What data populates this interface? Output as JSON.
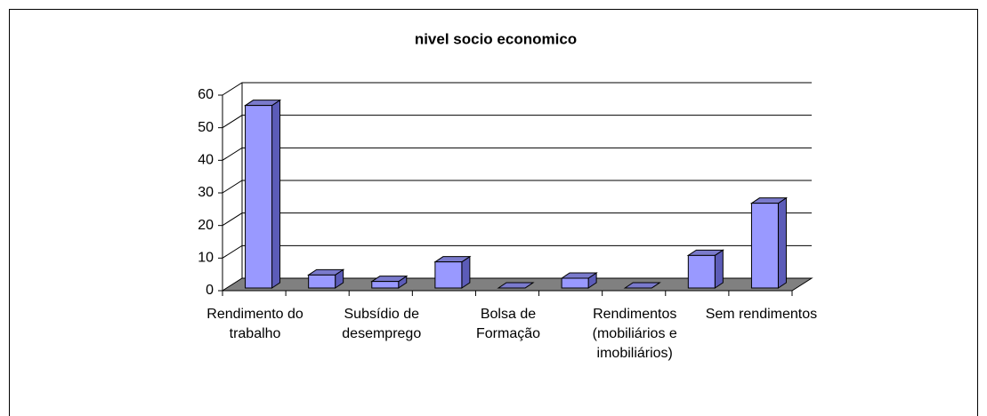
{
  "chart_data": {
    "type": "bar3d",
    "title": "nivel socio economico",
    "categories": [
      "Rendimento do trabalho",
      null,
      "Subsídio de desemprego",
      null,
      "Bolsa de Formação",
      null,
      "Rendimentos (mobiliários e imobiliários)",
      null,
      "Sem rendimentos"
    ],
    "values": [
      56,
      4,
      2,
      8,
      0,
      3,
      0,
      10,
      26
    ],
    "color": "#9999ff",
    "ylim": [
      0,
      60
    ],
    "yticks": [
      0,
      10,
      20,
      30,
      40,
      50,
      60
    ],
    "grid": true
  }
}
